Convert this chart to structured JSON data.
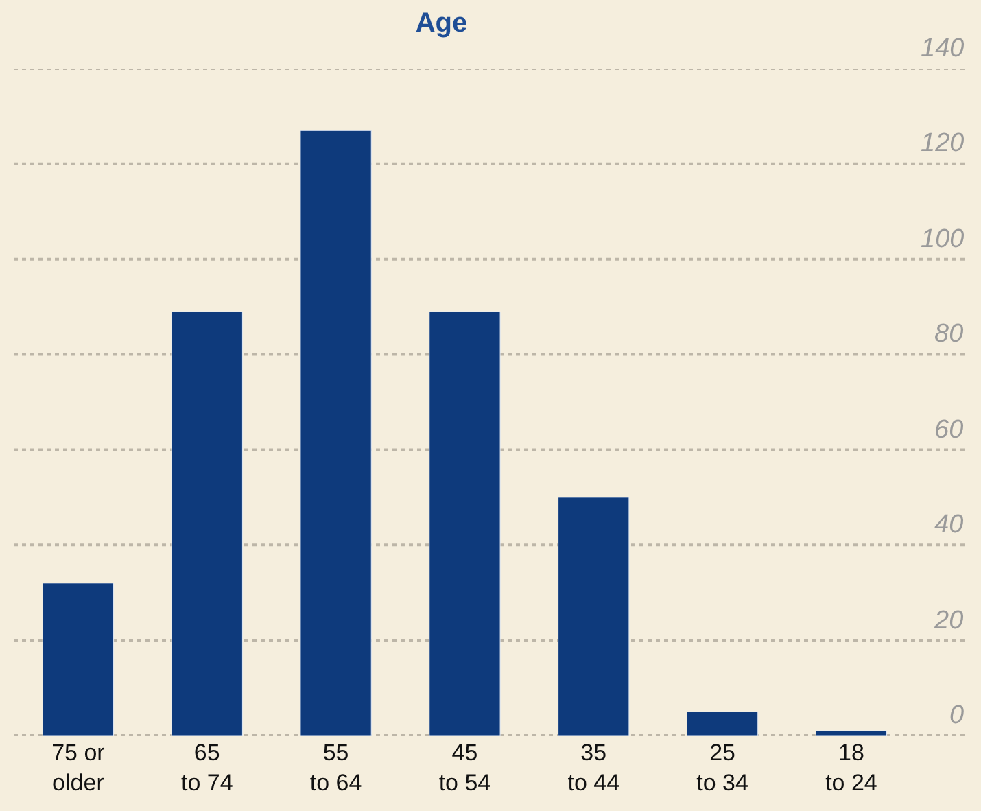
{
  "chart_data": {
    "type": "bar",
    "title": "Age",
    "categories": [
      "75 or\nolder",
      "65\nto 74",
      "55\nto 64",
      "45\nto 54",
      "35\nto 44",
      "25\nto 34",
      "18\nto 24"
    ],
    "values": [
      32,
      89,
      127,
      89,
      50,
      5,
      1
    ],
    "color": "#0e3a7c",
    "ylim": [
      0,
      140
    ],
    "yticks": [
      0,
      20,
      40,
      60,
      80,
      100,
      120,
      140
    ],
    "grid": "y"
  }
}
